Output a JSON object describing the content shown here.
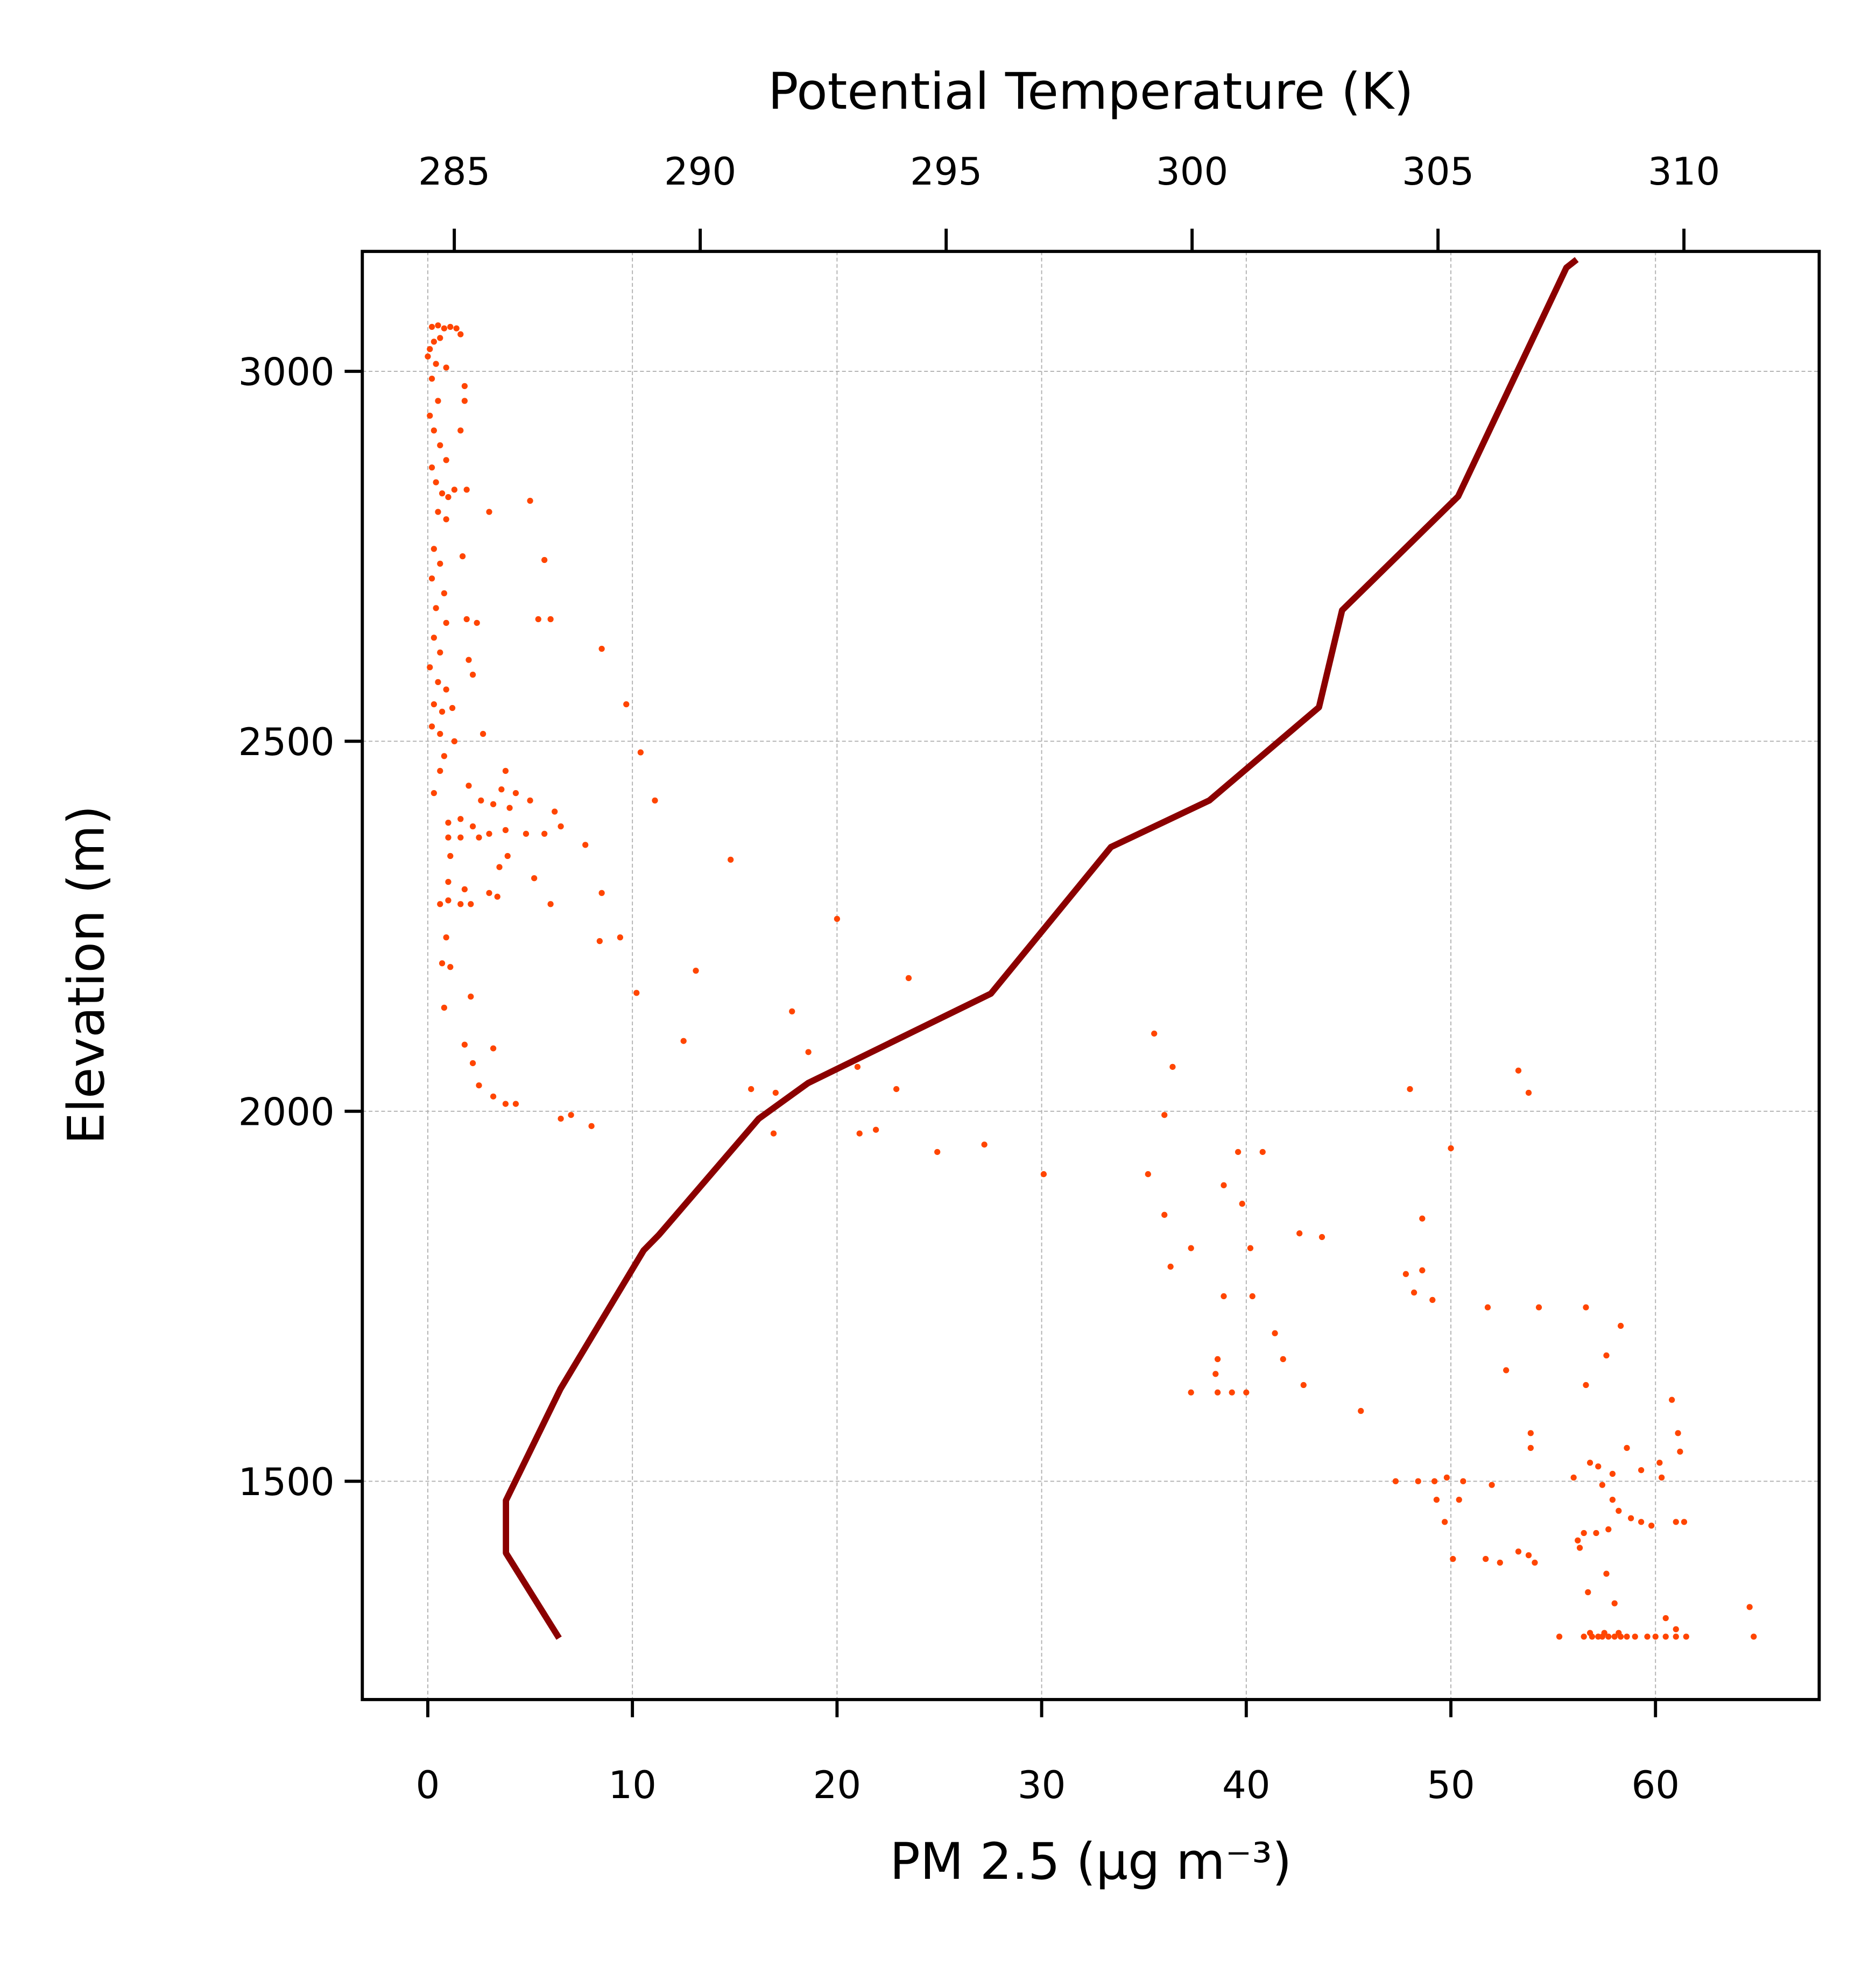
{
  "chart_data": {
    "type": "scatter",
    "xlabel": "PM 2.5 (μg m⁻³)",
    "x2label": "Potential Temperature (K)",
    "ylabel": "Elevation (m)",
    "xlim": [
      -3.2,
      68.0
    ],
    "xticks": [
      0,
      10,
      20,
      30,
      40,
      50,
      60
    ],
    "x2lim": [
      283.13,
      312.75
    ],
    "x2ticks": [
      285,
      290,
      295,
      300,
      305,
      310
    ],
    "ylim": [
      1205,
      3162
    ],
    "yticks": [
      1500,
      2000,
      2500,
      3000
    ],
    "grid": true,
    "series": [
      {
        "type": "scatter",
        "color": "#ff4500",
        "x": [
          0.2,
          0.5,
          0.8,
          1.1,
          1.4,
          1.6,
          0.3,
          0.1,
          0.6,
          0.0,
          0.4,
          0.9,
          1.8,
          1.8,
          0.2,
          0.5,
          0.1,
          0.3,
          0.6,
          0.9,
          0.2,
          1.6,
          0.4,
          0.7,
          1.0,
          1.3,
          1.9,
          0.5,
          0.9,
          3.0,
          5.0,
          1.7,
          0.3,
          0.6,
          5.7,
          0.2,
          0.8,
          0.4,
          0.9,
          1.9,
          2.4,
          5.4,
          6.0,
          0.3,
          0.6,
          2.0,
          8.5,
          0.1,
          0.5,
          0.9,
          2.2,
          0.3,
          0.7,
          1.2,
          9.7,
          0.2,
          0.6,
          2.7,
          1.3,
          0.8,
          10.4,
          0.6,
          3.8,
          2.0,
          0.3,
          3.6,
          4.3,
          4.0,
          2.6,
          3.2,
          5.0,
          11.1,
          6.2,
          1.0,
          1.6,
          2.2,
          1.0,
          1.6,
          2.5,
          3.0,
          3.8,
          4.8,
          5.7,
          6.5,
          7.7,
          1.1,
          3.9,
          3.5,
          14.8,
          1.0,
          5.2,
          1.8,
          3.0,
          8.5,
          0.6,
          1.0,
          1.6,
          2.1,
          3.4,
          6.0,
          20.0,
          0.9,
          8.4,
          9.4,
          0.7,
          1.1,
          13.1,
          23.5,
          2.1,
          10.2,
          0.8,
          17.8,
          1.8,
          12.5,
          3.2,
          18.6,
          2.2,
          21.0,
          2.5,
          3.2,
          3.8,
          4.3,
          15.8,
          17.0,
          22.9,
          6.5,
          7.0,
          8.0,
          16.9,
          21.1,
          21.9,
          24.9,
          27.2,
          30.1,
          35.5,
          36.4,
          36.0,
          35.2,
          38.9,
          39.6,
          40.8,
          39.8,
          36.0,
          37.3,
          36.3,
          40.2,
          42.6,
          43.7,
          38.9,
          40.3,
          41.4,
          41.8,
          38.6,
          38.5,
          37.3,
          38.6,
          39.3,
          40.0,
          42.8,
          45.6,
          48.0,
          50.0,
          48.6,
          47.8,
          48.6,
          48.2,
          49.1,
          51.8,
          53.3,
          53.8,
          52.7,
          54.3,
          56.6,
          58.3,
          57.6,
          56.6,
          60.8,
          61.1,
          61.2,
          53.9,
          53.9,
          56.0,
          56.8,
          57.2,
          58.6,
          57.9,
          59.3,
          60.2,
          60.3,
          47.3,
          48.4,
          49.2,
          49.8,
          50.6,
          52.0,
          49.3,
          50.4,
          57.4,
          57.9,
          58.2,
          58.8,
          59.3,
          59.8,
          61.0,
          61.4,
          49.7,
          53.3,
          53.8,
          54.1,
          51.7,
          52.4,
          50.1,
          56.2,
          56.5,
          57.1,
          57.7,
          56.3,
          57.6,
          56.7,
          58.0,
          60.5,
          61.0,
          64.6,
          64.8,
          55.3,
          56.5,
          56.9,
          57.2,
          57.4,
          57.7,
          58.0,
          58.3,
          58.6,
          59.0,
          59.6,
          60.0,
          60.5,
          61.0,
          61.5,
          56.8,
          57.5,
          58.2
        ],
        "values": [
          3060,
          3062,
          3058,
          3060,
          3058,
          3050,
          3040,
          3030,
          3045,
          3020,
          3010,
          3005,
          2980,
          2960,
          2990,
          2960,
          2940,
          2920,
          2900,
          2880,
          2870,
          2920,
          2850,
          2835,
          2830,
          2840,
          2840,
          2810,
          2800,
          2810,
          2825,
          2750,
          2760,
          2740,
          2745,
          2720,
          2700,
          2680,
          2660,
          2665,
          2660,
          2665,
          2665,
          2640,
          2620,
          2610,
          2625,
          2600,
          2580,
          2570,
          2590,
          2550,
          2540,
          2545,
          2550,
          2520,
          2510,
          2510,
          2500,
          2480,
          2485,
          2460,
          2460,
          2440,
          2430,
          2435,
          2430,
          2410,
          2420,
          2415,
          2420,
          2420,
          2405,
          2390,
          2395,
          2385,
          2370,
          2370,
          2370,
          2375,
          2380,
          2375,
          2375,
          2385,
          2360,
          2345,
          2345,
          2330,
          2340,
          2310,
          2315,
          2300,
          2295,
          2295,
          2280,
          2285,
          2280,
          2280,
          2290,
          2280,
          2260,
          2235,
          2230,
          2235,
          2200,
          2195,
          2190,
          2180,
          2155,
          2160,
          2140,
          2135,
          2090,
          2095,
          2085,
          2080,
          2065,
          2060,
          2035,
          2020,
          2010,
          2010,
          2030,
          2025,
          2030,
          1990,
          1995,
          1980,
          1970,
          1970,
          1975,
          1945,
          1955,
          1915,
          2105,
          2060,
          1995,
          1915,
          1900,
          1945,
          1945,
          1875,
          1860,
          1815,
          1790,
          1815,
          1835,
          1830,
          1750,
          1750,
          1700,
          1665,
          1665,
          1645,
          1620,
          1620,
          1620,
          1620,
          1630,
          1595,
          2030,
          1950,
          1855,
          1780,
          1785,
          1755,
          1745,
          1735,
          2055,
          2025,
          1650,
          1735,
          1735,
          1710,
          1670,
          1630,
          1610,
          1565,
          1540,
          1545,
          1565,
          1505,
          1525,
          1520,
          1545,
          1510,
          1515,
          1525,
          1505,
          1500,
          1500,
          1500,
          1505,
          1500,
          1495,
          1475,
          1475,
          1495,
          1475,
          1460,
          1450,
          1445,
          1440,
          1445,
          1445,
          1445,
          1405,
          1400,
          1390,
          1395,
          1390,
          1395,
          1420,
          1430,
          1430,
          1435,
          1410,
          1375,
          1350,
          1335,
          1315,
          1300,
          1330,
          1290,
          1290,
          1290,
          1290,
          1290,
          1290,
          1290,
          1290,
          1290,
          1290,
          1290,
          1290,
          1290,
          1290,
          1290,
          1290,
          1295,
          1295,
          1295
        ]
      },
      {
        "type": "line",
        "axis": "x2",
        "color": "#8b0000",
        "x": [
          287.13,
          286.05,
          286.05,
          287.16,
          288.85,
          289.16,
          291.19,
          292.19,
          295.91,
          298.35,
          300.35,
          302.58,
          303.05,
          305.41,
          307.61,
          307.82
        ],
        "values": [
          1288,
          1403,
          1474,
          1625,
          1812,
          1833,
          1990,
          2038,
          2159,
          2357,
          2420,
          2546,
          2677,
          2831,
          3140,
          3151
        ]
      }
    ]
  }
}
